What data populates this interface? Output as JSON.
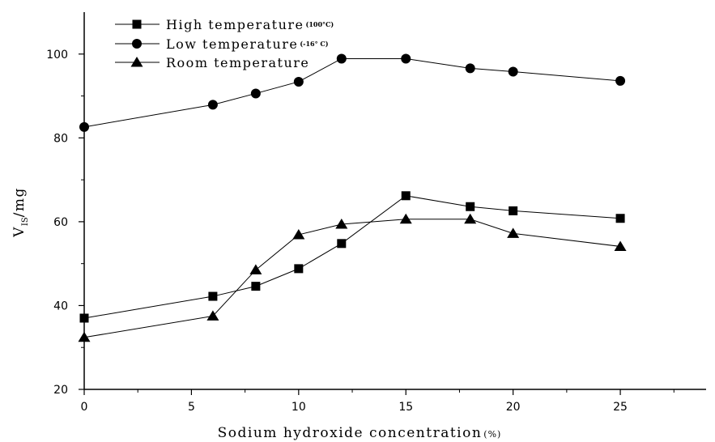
{
  "chart_data": {
    "type": "line",
    "xlabel": "Sodium hydroxide concentration",
    "xlabel_unit": "(%)",
    "ylabel_main": "V",
    "ylabel_sub": "IS",
    "ylabel_rest": "/mg",
    "xlim": [
      0,
      29
    ],
    "ylim": [
      20,
      110
    ],
    "x_ticks": [
      0,
      5,
      10,
      15,
      20,
      25
    ],
    "x_minor_ticks": [
      2.5,
      7.5,
      12.5,
      17.5,
      22.5,
      27.5
    ],
    "y_ticks": [
      20,
      40,
      60,
      80,
      100
    ],
    "y_minor_ticks": [
      30,
      50,
      70,
      90
    ],
    "grid": false,
    "legend_position": "top-left",
    "series": [
      {
        "name": "High temperature",
        "name_suffix": "(100°C)",
        "marker": "square",
        "color": "#000000",
        "x": [
          0,
          6,
          8,
          10,
          12,
          15,
          18,
          20,
          25
        ],
        "values": [
          37.0,
          42.2,
          44.6,
          48.8,
          54.8,
          66.2,
          63.6,
          62.6,
          60.8
        ]
      },
      {
        "name": "Low temperature",
        "name_suffix": "(-16° C)",
        "marker": "circle",
        "color": "#000000",
        "x": [
          0,
          6,
          8,
          10,
          12,
          15,
          18,
          20,
          25
        ],
        "values": [
          82.6,
          87.9,
          90.6,
          93.4,
          98.9,
          98.9,
          96.6,
          95.8,
          93.6
        ]
      },
      {
        "name": "Room temperature",
        "name_suffix": "",
        "marker": "triangle",
        "color": "#000000",
        "x": [
          0,
          6,
          8,
          10,
          12,
          15,
          18,
          20,
          25
        ],
        "values": [
          32.4,
          37.5,
          48.5,
          56.9,
          59.4,
          60.6,
          60.6,
          57.2,
          54.1
        ]
      }
    ]
  }
}
